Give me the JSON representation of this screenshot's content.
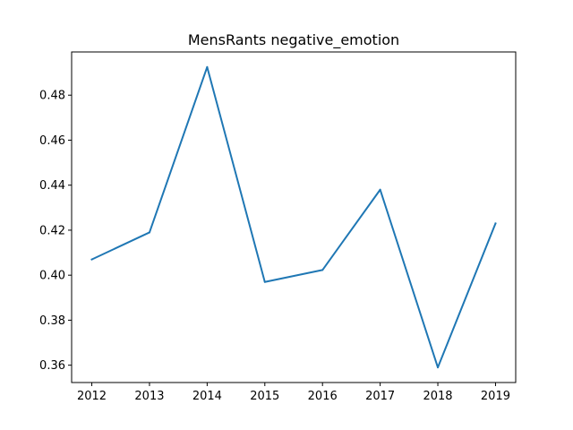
{
  "chart_data": {
    "type": "line",
    "title": "MensRants negative_emotion",
    "xlabel": "",
    "ylabel": "",
    "x": [
      2012,
      2013,
      2014,
      2015,
      2016,
      2017,
      2018,
      2019
    ],
    "series": [
      {
        "values": [
          0.407,
          0.419,
          0.4925,
          0.397,
          0.4023,
          0.438,
          0.359,
          0.423
        ],
        "color": "#1f77b4"
      }
    ],
    "x_ticks": [
      "2012",
      "2013",
      "2014",
      "2015",
      "2016",
      "2017",
      "2018",
      "2019"
    ],
    "y_ticks": [
      0.36,
      0.38,
      0.4,
      0.42,
      0.44,
      0.46,
      0.48
    ],
    "y_tick_labels": [
      "0.36",
      "0.38",
      "0.40",
      "0.42",
      "0.44",
      "0.46",
      "0.48"
    ],
    "xlim": [
      2011.65,
      2019.35
    ],
    "ylim": [
      0.3523,
      0.4992
    ],
    "grid": false,
    "legend": "none"
  }
}
